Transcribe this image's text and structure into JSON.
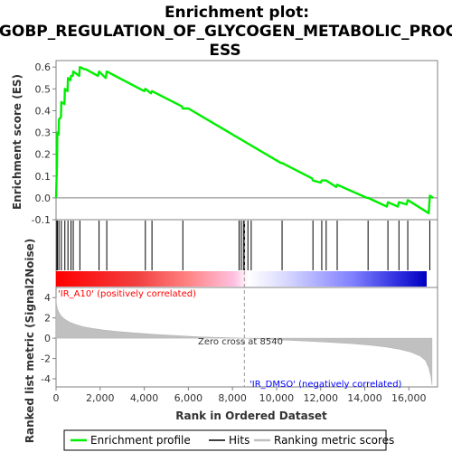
{
  "chart_data": {
    "type": "line",
    "title_lines": [
      "Enrichment plot:",
      "GOBP_REGULATION_OF_GLYCOGEN_METABOLIC_PROC",
      "ESS"
    ],
    "top_panel": {
      "ylabel": "Enrichment score (ES)",
      "ylim": [
        -0.1,
        0.63
      ],
      "yticks": [
        "-0.1",
        "0.0",
        "0.1",
        "0.2",
        "0.3",
        "0.4",
        "0.5",
        "0.6"
      ],
      "ytick_values": [
        -0.1,
        0.0,
        0.1,
        0.2,
        0.3,
        0.4,
        0.5,
        0.6
      ],
      "series": [
        {
          "name": "Enrichment profile",
          "color": "#00ee00",
          "x": [
            0,
            40,
            60,
            120,
            130,
            220,
            240,
            380,
            400,
            520,
            540,
            650,
            680,
            760,
            780,
            1050,
            1080,
            1300,
            1350,
            1900,
            1950,
            2250,
            2300,
            4000,
            4050,
            4300,
            4350,
            5700,
            5750,
            6000,
            10200,
            10250,
            11600,
            11650,
            12000,
            12050,
            12200,
            12250,
            12700,
            12750,
            14100,
            14150,
            15000,
            15050,
            15500,
            15550,
            15900,
            15950,
            16900,
            16950,
            17100
          ],
          "y": [
            0.0,
            0.15,
            0.3,
            0.29,
            0.36,
            0.37,
            0.44,
            0.43,
            0.5,
            0.49,
            0.55,
            0.54,
            0.56,
            0.56,
            0.58,
            0.56,
            0.6,
            0.59,
            0.59,
            0.56,
            0.58,
            0.55,
            0.58,
            0.49,
            0.5,
            0.48,
            0.49,
            0.42,
            0.41,
            0.41,
            0.16,
            0.16,
            0.09,
            0.08,
            0.07,
            0.08,
            0.08,
            0.08,
            0.05,
            0.06,
            0.0,
            0.0,
            -0.04,
            -0.02,
            -0.04,
            -0.02,
            -0.03,
            -0.01,
            -0.07,
            0.01,
            0.0
          ]
        }
      ]
    },
    "hits": {
      "name": "Hits",
      "positions": [
        40,
        60,
        130,
        240,
        400,
        540,
        680,
        780,
        1080,
        1950,
        2300,
        4050,
        4350,
        5750,
        8300,
        8400,
        8500,
        8550,
        8700,
        8850,
        10250,
        11650,
        12050,
        12250,
        12750,
        14150,
        15050,
        15550,
        15950,
        16950
      ]
    },
    "bottom_panel": {
      "ylabel": "Ranked list metric (Signal2Noise)",
      "ylim": [
        -4.8,
        5.0
      ],
      "yticks": [
        "-4",
        "-2",
        "0",
        "2",
        "4"
      ],
      "ytick_values": [
        -4,
        -2,
        0,
        2,
        4
      ],
      "xlabel": "Rank in Ordered Dataset",
      "xlim": [
        0,
        17300
      ],
      "xticks": [
        "0",
        "2,000",
        "4,000",
        "6,000",
        "8,000",
        "10,000",
        "12,000",
        "14,000",
        "16,000"
      ],
      "xtick_values": [
        0,
        2000,
        4000,
        6000,
        8000,
        10000,
        12000,
        14000,
        16000
      ],
      "metric_profile": {
        "name": "Ranking metric scores",
        "color": "#c0c0c0",
        "x": [
          0,
          20,
          60,
          120,
          200,
          300,
          450,
          650,
          900,
          1200,
          1600,
          2100,
          2800,
          3600,
          4500,
          5500,
          6500,
          7500,
          8540,
          9500,
          10500,
          11500,
          12500,
          13500,
          14300,
          15000,
          15600,
          16100,
          16500,
          16750,
          16900,
          17000,
          17050
        ],
        "y": [
          4.0,
          3.3,
          2.9,
          2.6,
          2.3,
          2.05,
          1.8,
          1.55,
          1.35,
          1.15,
          0.98,
          0.82,
          0.66,
          0.52,
          0.38,
          0.25,
          0.14,
          0.06,
          0.0,
          -0.1,
          -0.2,
          -0.3,
          -0.42,
          -0.55,
          -0.7,
          -0.88,
          -1.1,
          -1.38,
          -1.75,
          -2.2,
          -2.9,
          -3.8,
          -4.6
        ]
      },
      "zero_cross_label": "Zero cross at 8540",
      "zero_cross": 8540,
      "pos_label": "'IR_A10' (positively correlated)",
      "neg_label": "'IR_DMSO' (negatively correlated)"
    },
    "legend": [
      {
        "label": "Enrichment profile",
        "color": "#00ee00"
      },
      {
        "label": "Hits",
        "color": "#000000"
      },
      {
        "label": "Ranking metric scores",
        "color": "#c0c0c0"
      }
    ]
  }
}
